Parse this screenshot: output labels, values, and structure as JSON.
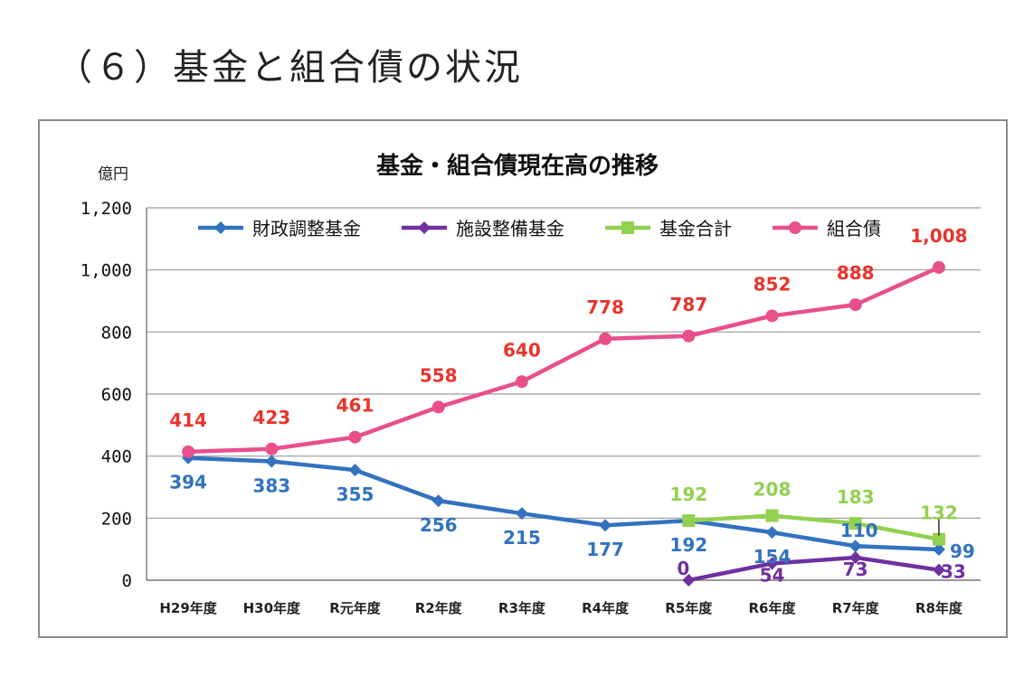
{
  "page": {
    "heading": "（６）基金と組合債の状況"
  },
  "colors": {
    "fiscal": "#3272c0",
    "facility": "#7030a0",
    "fund_total": "#92d050",
    "bond": "#e94f8a",
    "bond_label": "#e8342c",
    "grid": "#9a9a9a"
  },
  "chart_data": {
    "type": "line",
    "title": "基金・組合債現在高の推移",
    "ylabel": "億円",
    "xlabel": "",
    "ylim": [
      0,
      1200
    ],
    "yticks": [
      0,
      200,
      400,
      600,
      800,
      1000,
      1200
    ],
    "ytick_labels": [
      "0",
      "200",
      "400",
      "600",
      "800",
      "1,000",
      "1,200"
    ],
    "grid": true,
    "legend_position": "top",
    "categories": [
      "H29年度",
      "H30年度",
      "R元年度",
      "R2年度",
      "R3年度",
      "R4年度",
      "R5年度",
      "R6年度",
      "R7年度",
      "R8年度"
    ],
    "series": [
      {
        "name": "財政調整基金",
        "key": "fiscal",
        "marker": "diamond",
        "values": [
          394,
          383,
          355,
          256,
          215,
          177,
          192,
          154,
          110,
          99
        ],
        "labels": [
          "394",
          "383",
          "355",
          "256",
          "215",
          "177",
          "192",
          "154",
          "110",
          "99"
        ]
      },
      {
        "name": "施設整備基金",
        "key": "facility",
        "marker": "diamond",
        "values": [
          null,
          null,
          null,
          null,
          null,
          null,
          0,
          54,
          73,
          33
        ],
        "labels": [
          "",
          "",
          "",
          "",
          "",
          "",
          "0",
          "54",
          "73",
          "33"
        ]
      },
      {
        "name": "基金合計",
        "key": "fund_total",
        "marker": "square",
        "values": [
          null,
          null,
          null,
          null,
          null,
          null,
          192,
          208,
          183,
          132
        ],
        "labels": [
          "",
          "",
          "",
          "",
          "",
          "",
          "192",
          "208",
          "183",
          "132"
        ]
      },
      {
        "name": "組合債",
        "key": "bond",
        "marker": "circle",
        "values": [
          414,
          423,
          461,
          558,
          640,
          778,
          787,
          852,
          888,
          1008
        ],
        "labels": [
          "414",
          "423",
          "461",
          "558",
          "640",
          "778",
          "787",
          "852",
          "888",
          "1,008"
        ]
      }
    ]
  }
}
